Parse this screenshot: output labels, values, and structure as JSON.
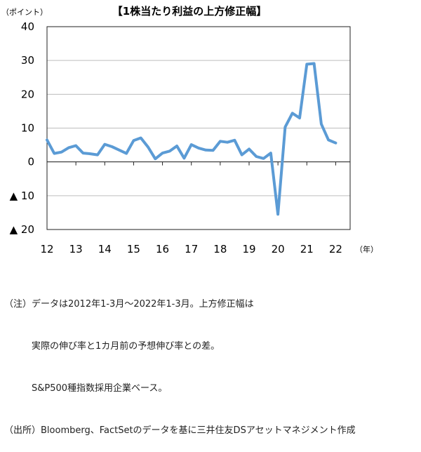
{
  "chart_data": {
    "type": "line",
    "title": "【1株当たり利益の上方修正幅】",
    "yunit": "（ポイント）",
    "xunit": "（年）",
    "ylim": [
      -20,
      40
    ],
    "yticks": [
      40,
      30,
      20,
      10,
      0,
      -10,
      -20
    ],
    "ytick_labels": [
      "40",
      "30",
      "20",
      "10",
      "0",
      "▲ 10",
      "▲ 20"
    ],
    "xtick_labels": [
      "12",
      "13",
      "14",
      "15",
      "16",
      "17",
      "18",
      "19",
      "20",
      "21",
      "22"
    ],
    "grid": true,
    "line_color": "#5b9bd5",
    "series": [
      {
        "x": [
          2012.0,
          2012.25,
          2012.5,
          2012.75,
          2013.0,
          2013.25,
          2013.5,
          2013.75,
          2014.0,
          2014.25,
          2014.5,
          2014.75,
          2015.0,
          2015.25,
          2015.5,
          2015.75,
          2016.0,
          2016.25,
          2016.5,
          2016.75,
          2017.0,
          2017.25,
          2017.5,
          2017.75,
          2018.0,
          2018.25,
          2018.5,
          2018.75,
          2019.0,
          2019.25,
          2019.5,
          2019.75,
          2020.0,
          2020.25,
          2020.5,
          2020.75,
          2021.0,
          2021.25,
          2021.5,
          2021.75,
          2022.0
        ],
        "values": [
          6.5,
          2.5,
          2.9,
          4.2,
          4.8,
          2.6,
          2.4,
          2.1,
          5.2,
          4.5,
          3.5,
          2.5,
          6.3,
          7.1,
          4.4,
          0.9,
          2.6,
          3.2,
          4.7,
          1.1,
          5.1,
          4.1,
          3.5,
          3.4,
          6.1,
          5.8,
          6.4,
          2.1,
          3.8,
          1.6,
          1.0,
          2.6,
          -15.5,
          10.3,
          14.4,
          13.0,
          28.9,
          29.1,
          11.2,
          6.5,
          5.6
        ]
      }
    ]
  },
  "notes": {
    "line1": "（注）データは2012年1-3月～2022年1-3月。上方修正幅は",
    "line2": "　　　実際の伸び率と1カ月前の予想伸び率との差。",
    "line3": "　　　S&P500種指数採用企業ベース。",
    "line4": "（出所）Bloomberg、FactSetのデータを基に三井住友DSアセットマネジメント作成"
  }
}
